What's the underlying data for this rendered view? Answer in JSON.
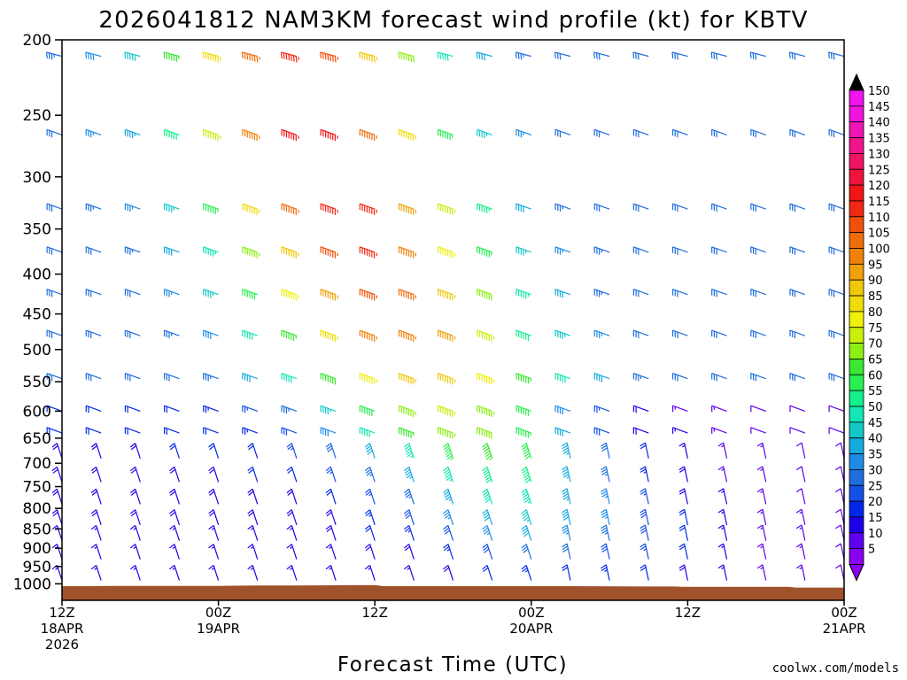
{
  "colors": {
    "terrain": "#a0522d",
    "credit": "#cc0000"
  },
  "chart_data": {
    "type": "wind-barb time-height profile",
    "title": "2026041812 NAM3KM forecast wind profile (kt) for KBTV",
    "xlabel": "Forecast Time (UTC)",
    "ylabel": "",
    "y_axis": {
      "ticks": [
        200,
        250,
        300,
        350,
        400,
        450,
        500,
        550,
        600,
        650,
        700,
        750,
        800,
        850,
        900,
        950,
        1000
      ],
      "range": [
        200,
        1050
      ],
      "scale": "log-pressure, inverted"
    },
    "x_axis": {
      "ticks": [
        {
          "value": 0,
          "line1": "12Z",
          "line2": "18APR",
          "line3": "2026"
        },
        {
          "value": 12,
          "line1": "00Z",
          "line2": "19APR",
          "line3": ""
        },
        {
          "value": 24,
          "line1": "12Z",
          "line2": "",
          "line3": ""
        },
        {
          "value": 36,
          "line1": "00Z",
          "line2": "20APR",
          "line3": ""
        },
        {
          "value": 48,
          "line1": "12Z",
          "line2": "",
          "line3": ""
        },
        {
          "value": 60,
          "line1": "00Z",
          "line2": "21APR",
          "line3": ""
        }
      ],
      "range": [
        0,
        60
      ],
      "units": "forecast hours from 2026-04-18 12Z"
    },
    "colorbar": {
      "levels": [
        5,
        10,
        15,
        20,
        25,
        30,
        35,
        40,
        45,
        50,
        55,
        60,
        65,
        70,
        75,
        80,
        85,
        90,
        95,
        100,
        105,
        110,
        115,
        120,
        125,
        130,
        135,
        140,
        145,
        150
      ],
      "colors": [
        "#8a00f0",
        "#5f00f0",
        "#1e00e8",
        "#0028e8",
        "#1450e8",
        "#1e6edc",
        "#1e8ce6",
        "#14aade",
        "#14c8c8",
        "#14e6b4",
        "#14f08c",
        "#28f050",
        "#3ce632",
        "#8cf014",
        "#c8f00a",
        "#f0f00a",
        "#f0dc0a",
        "#f0c80a",
        "#f0a00a",
        "#f0820a",
        "#f06e0a",
        "#f0500a",
        "#f02814",
        "#f01414",
        "#f0143c",
        "#f01464",
        "#f0148c",
        "#f014b4",
        "#f014dc",
        "#f014f0"
      ],
      "extend": "both",
      "units": "kt"
    },
    "terrain_surface_pressure": [
      {
        "t": 0,
        "p": 1007
      },
      {
        "t": 2,
        "p": 1007
      },
      {
        "t": 3.8,
        "p": 1006
      },
      {
        "t": 7.5,
        "p": 1006
      },
      {
        "t": 11.7,
        "p": 1006
      },
      {
        "t": 14.8,
        "p": 1005
      },
      {
        "t": 17.8,
        "p": 1005
      },
      {
        "t": 21.8,
        "p": 1004
      },
      {
        "t": 24.1,
        "p": 1004
      },
      {
        "t": 24.6,
        "p": 1007
      },
      {
        "t": 29,
        "p": 1007
      },
      {
        "t": 30.2,
        "p": 1007
      },
      {
        "t": 38.2,
        "p": 1007
      },
      {
        "t": 38.9,
        "p": 1007
      },
      {
        "t": 44.9,
        "p": 1008
      },
      {
        "t": 47.1,
        "p": 1008
      },
      {
        "t": 47.6,
        "p": 1009
      },
      {
        "t": 55.7,
        "p": 1009
      },
      {
        "t": 56.3,
        "p": 1011
      },
      {
        "t": 60,
        "p": 1011
      }
    ]
  },
  "credit": "coolwx.com/models"
}
